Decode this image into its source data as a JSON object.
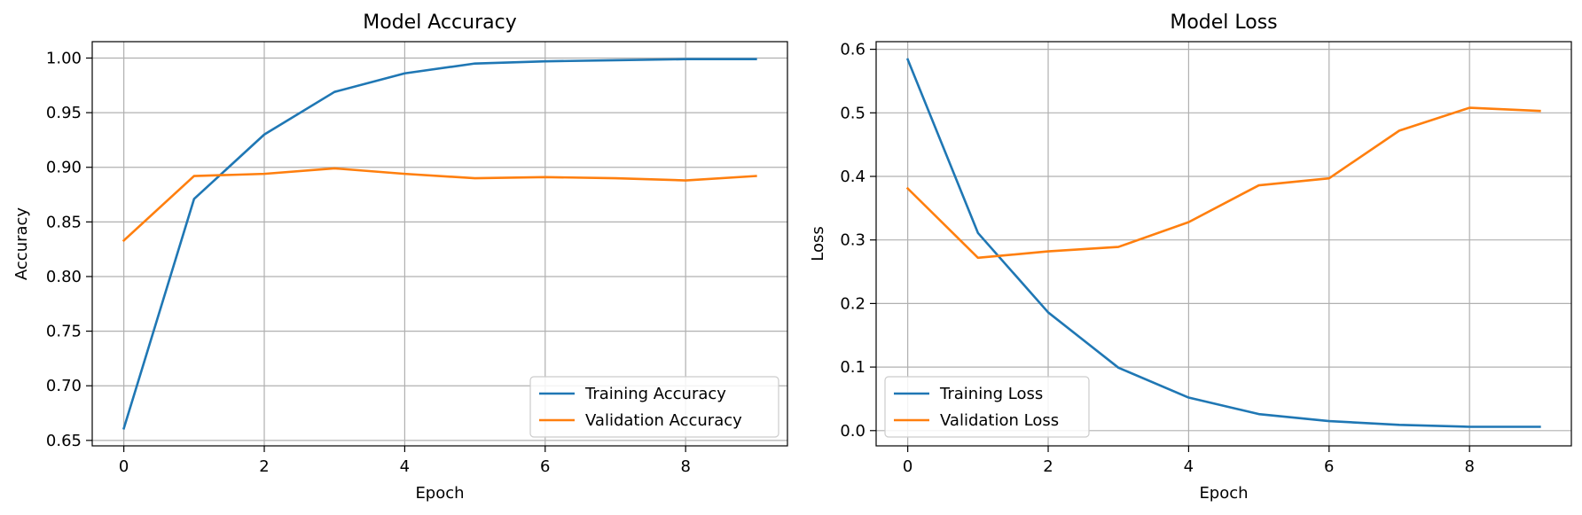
{
  "chart_data": [
    {
      "type": "line",
      "title": "Model Accuracy",
      "xlabel": "Epoch",
      "ylabel": "Accuracy",
      "x": [
        0,
        1,
        2,
        3,
        4,
        5,
        6,
        7,
        8,
        9
      ],
      "xlim": [
        -0.45,
        9.45
      ],
      "ylim": [
        0.645,
        1.015
      ],
      "xticks": [
        0,
        2,
        4,
        6,
        8
      ],
      "xtick_labels": [
        "0",
        "2",
        "4",
        "6",
        "8"
      ],
      "yticks": [
        0.65,
        0.7,
        0.75,
        0.8,
        0.85,
        0.9,
        0.95,
        1.0
      ],
      "ytick_labels": [
        "0.65",
        "0.70",
        "0.75",
        "0.80",
        "0.85",
        "0.90",
        "0.95",
        "1.00"
      ],
      "grid": true,
      "legend_position": "lower-right",
      "series": [
        {
          "name": "Training Accuracy",
          "color": "#1f77b4",
          "values": [
            0.661,
            0.871,
            0.93,
            0.969,
            0.986,
            0.995,
            0.997,
            0.998,
            0.999,
            0.999
          ]
        },
        {
          "name": "Validation Accuracy",
          "color": "#ff7f0e",
          "values": [
            0.833,
            0.892,
            0.894,
            0.899,
            0.894,
            0.89,
            0.891,
            0.89,
            0.888,
            0.892
          ]
        }
      ]
    },
    {
      "type": "line",
      "title": "Model Loss",
      "xlabel": "Epoch",
      "ylabel": "Loss",
      "x": [
        0,
        1,
        2,
        3,
        4,
        5,
        6,
        7,
        8,
        9
      ],
      "xlim": [
        -0.45,
        9.45
      ],
      "ylim": [
        -0.024,
        0.612
      ],
      "xticks": [
        0,
        2,
        4,
        6,
        8
      ],
      "xtick_labels": [
        "0",
        "2",
        "4",
        "6",
        "8"
      ],
      "yticks": [
        0.0,
        0.1,
        0.2,
        0.3,
        0.4,
        0.5,
        0.6
      ],
      "ytick_labels": [
        "0.0",
        "0.1",
        "0.2",
        "0.3",
        "0.4",
        "0.5",
        "0.6"
      ],
      "grid": true,
      "legend_position": "lower-left",
      "series": [
        {
          "name": "Training Loss",
          "color": "#1f77b4",
          "values": [
            0.584,
            0.311,
            0.186,
            0.099,
            0.052,
            0.026,
            0.015,
            0.009,
            0.006,
            0.006
          ]
        },
        {
          "name": "Validation Loss",
          "color": "#ff7f0e",
          "values": [
            0.381,
            0.272,
            0.282,
            0.289,
            0.328,
            0.386,
            0.397,
            0.472,
            0.508,
            0.503
          ]
        }
      ]
    }
  ]
}
